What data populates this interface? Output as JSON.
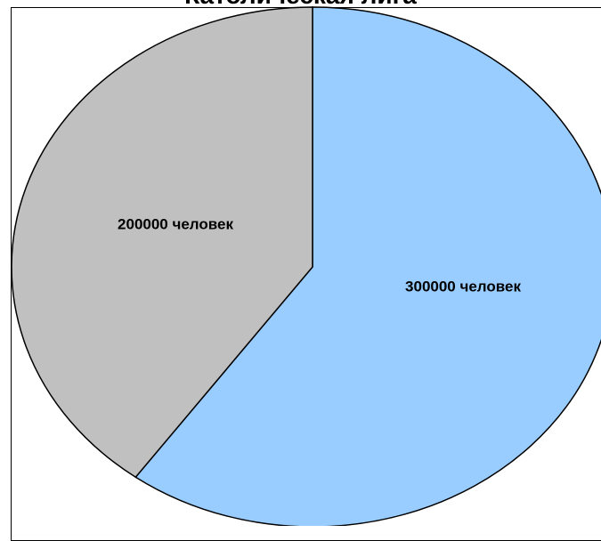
{
  "chart_data": {
    "type": "pie",
    "title": "Католическая лига",
    "slices": [
      {
        "label": "200000 человек",
        "value": 200000,
        "color": "#c0c0c0"
      },
      {
        "label": "300000 человек",
        "value": 300000,
        "color": "#99ccff"
      }
    ],
    "grid": false,
    "legend": "none"
  }
}
